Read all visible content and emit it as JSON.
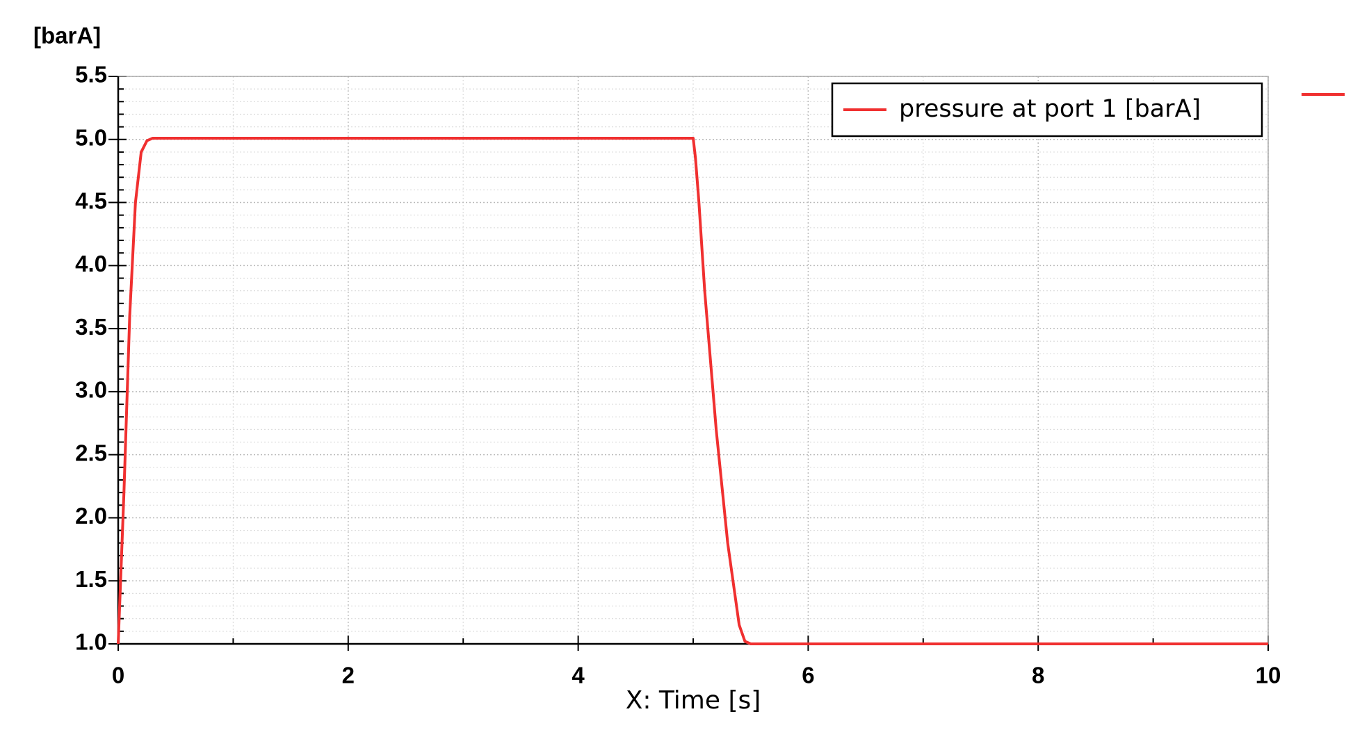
{
  "chart_data": {
    "type": "line",
    "y_axis_label": "[barA]",
    "x_axis_label": "X: Time [s]",
    "x": [
      0,
      0.05,
      0.1,
      0.15,
      0.2,
      0.25,
      0.3,
      5.0,
      5.02,
      5.05,
      5.1,
      5.2,
      5.3,
      5.4,
      5.45,
      5.5,
      10
    ],
    "series": [
      {
        "name": "pressure at port 1 [barA]",
        "color": "#f03030",
        "values": [
          1.0,
          2.2,
          3.6,
          4.5,
          4.9,
          4.99,
          5.01,
          5.01,
          4.85,
          4.5,
          3.8,
          2.7,
          1.8,
          1.15,
          1.02,
          1.0,
          1.0
        ]
      }
    ],
    "xlim": [
      0,
      10
    ],
    "ylim": [
      1.0,
      5.5
    ],
    "xticks": [
      0,
      2,
      4,
      6,
      8,
      10
    ],
    "yticks": [
      {
        "value": 1,
        "label": "1.0"
      },
      1.5,
      {
        "value": 2,
        "label": "2.0"
      },
      2.5,
      {
        "value": 3,
        "label": "3.0"
      },
      3.5,
      {
        "value": 4,
        "label": "4.0"
      },
      4.5,
      {
        "value": 5,
        "label": "5.0"
      },
      5.5
    ],
    "x_minor_ticks": [
      1,
      3,
      5,
      7,
      9
    ],
    "y_minor_ticks": [
      1.1,
      1.2,
      1.3,
      1.4,
      1.6,
      1.7,
      1.8,
      1.9,
      2.1,
      2.2,
      2.3,
      2.4,
      2.6,
      2.7,
      2.8,
      2.9,
      3.1,
      3.2,
      3.3,
      3.4,
      3.6,
      3.7,
      3.8,
      3.9,
      4.1,
      4.2,
      4.3,
      4.4,
      4.6,
      4.7,
      4.8,
      4.9,
      5.1,
      5.2,
      5.3,
      5.4
    ],
    "grid": true,
    "legend": "upper right"
  }
}
